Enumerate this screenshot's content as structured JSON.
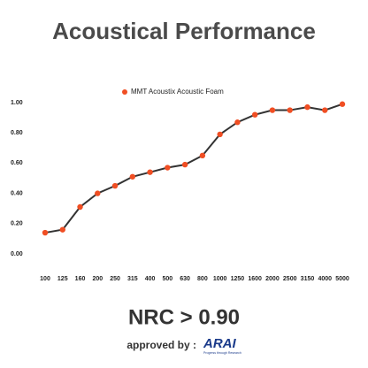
{
  "chart_data": {
    "type": "line",
    "title": "Acoustical Performance",
    "categories": [
      "100",
      "125",
      "160",
      "200",
      "250",
      "315",
      "400",
      "500",
      "630",
      "800",
      "1000",
      "1250",
      "1600",
      "2000",
      "2500",
      "3150",
      "4000",
      "5000"
    ],
    "series": [
      {
        "name": "MMT Acoustix Acoustic Foam",
        "color": "#f04e23",
        "values": [
          0.14,
          0.16,
          0.31,
          0.4,
          0.45,
          0.51,
          0.54,
          0.57,
          0.59,
          0.65,
          0.79,
          0.87,
          0.92,
          0.95,
          0.95,
          0.97,
          0.95,
          0.99
        ]
      }
    ],
    "line_color": "#333333",
    "ylim": [
      0,
      1
    ],
    "yticks": [
      {
        "value": 0,
        "label": "0.00"
      },
      {
        "value": 0.2,
        "label": "0.20"
      },
      {
        "value": 0.4,
        "label": "0.40"
      },
      {
        "value": 0.6,
        "label": "0.60"
      },
      {
        "value": 0.8,
        "label": "0.80"
      },
      {
        "value": 1,
        "label": "1.00"
      }
    ],
    "grid": false,
    "annotations": [
      "NRC > 0.90",
      "approved by :",
      "ARAI",
      "Progress through Research"
    ]
  }
}
